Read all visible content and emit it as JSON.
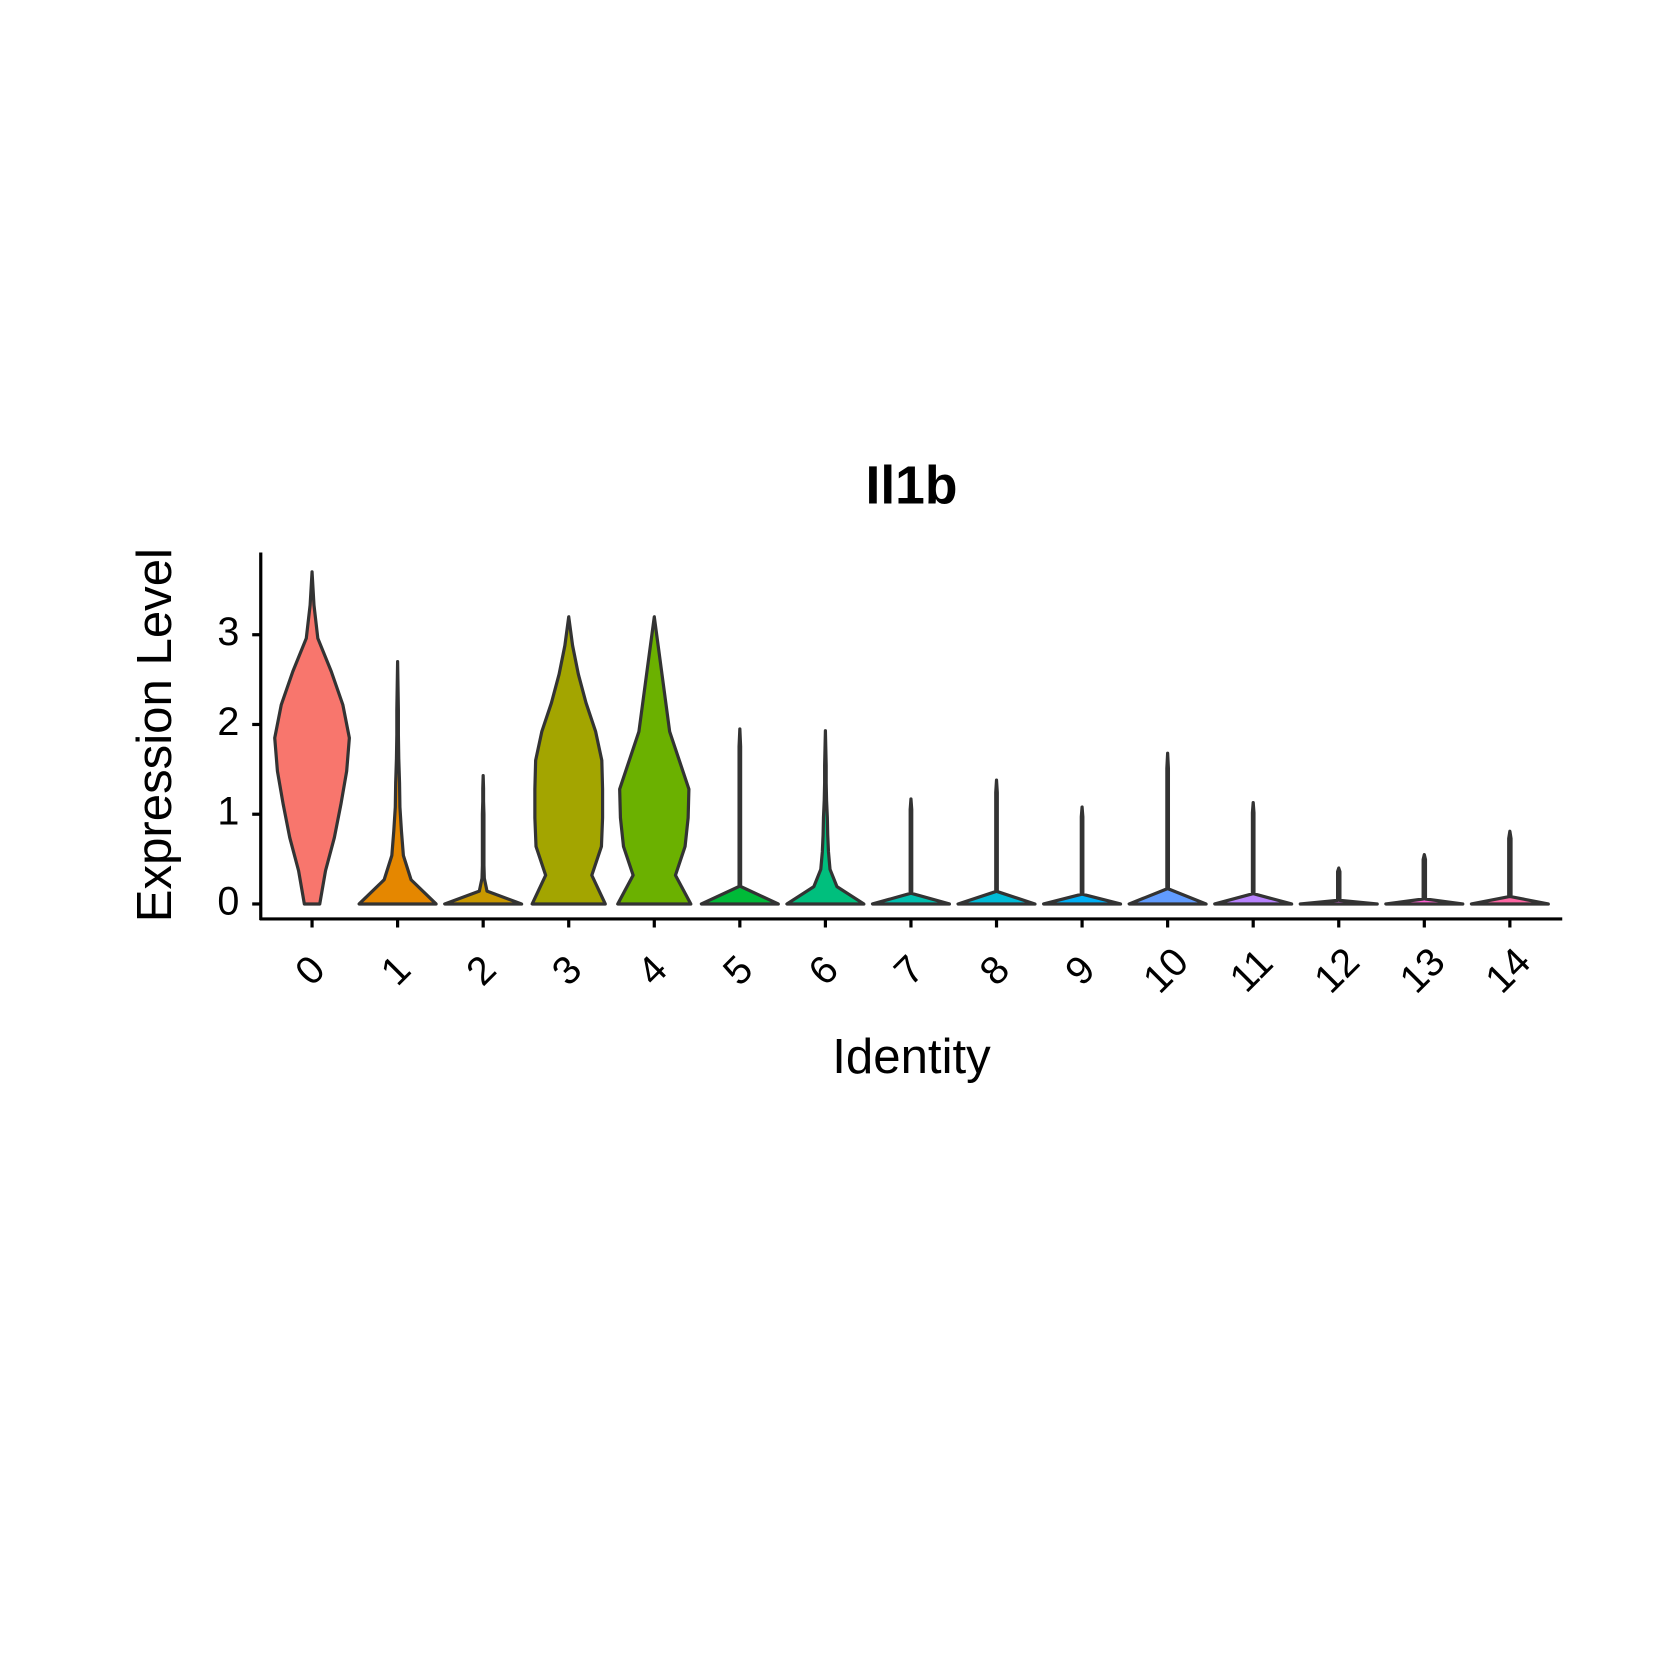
{
  "chart_data": {
    "type": "violin",
    "title": "Il1b",
    "x_label": "Identity",
    "y_label": "Expression Level",
    "categories": [
      "0",
      "1",
      "2",
      "3",
      "4",
      "5",
      "6",
      "7",
      "8",
      "9",
      "10",
      "11",
      "12",
      "13",
      "14"
    ],
    "colors": [
      "#F8766D",
      "#E58700",
      "#C99800",
      "#A3A500",
      "#6BB100",
      "#00BA38",
      "#00BF7D",
      "#00C0AF",
      "#00BCD8",
      "#00B0F6",
      "#619CFF",
      "#B983FF",
      "#E76BF3",
      "#FD61D1",
      "#FF67A4"
    ],
    "max": [
      3.7,
      2.7,
      1.43,
      3.2,
      3.2,
      1.95,
      1.93,
      1.17,
      1.38,
      1.08,
      1.68,
      1.13,
      0.4,
      0.55,
      0.81
    ],
    "profiles": [
      [
        0.2,
        0.35,
        0.58,
        0.75,
        0.9,
        0.97,
        0.8,
        0.5,
        0.15,
        0.05,
        0
      ],
      [
        1.0,
        0.35,
        0.15,
        0.1,
        0.06,
        0.05,
        0.03,
        0.02,
        0.02,
        0.01,
        0
      ],
      [
        1.0,
        0.1,
        0.03,
        0.02,
        0.02,
        0.02,
        0.02,
        0.02,
        0.01,
        0.01,
        0
      ],
      [
        0.95,
        0.6,
        0.85,
        0.88,
        0.88,
        0.86,
        0.7,
        0.45,
        0.25,
        0.1,
        0
      ],
      [
        0.95,
        0.55,
        0.8,
        0.88,
        0.9,
        0.65,
        0.4,
        0.3,
        0.2,
        0.1,
        0
      ],
      [
        1.0,
        0.02,
        0.02,
        0.02,
        0.02,
        0.02,
        0.02,
        0.02,
        0.02,
        0.02,
        0
      ],
      [
        1.0,
        0.3,
        0.12,
        0.08,
        0.06,
        0.05,
        0.03,
        0.02,
        0.02,
        0.01,
        0
      ],
      [
        1.0,
        0.02,
        0.02,
        0.02,
        0.02,
        0.02,
        0.02,
        0.02,
        0.02,
        0.02,
        0
      ],
      [
        1.0,
        0.02,
        0.02,
        0.02,
        0.02,
        0.02,
        0.02,
        0.02,
        0.02,
        0.02,
        0
      ],
      [
        1.0,
        0.02,
        0.02,
        0.02,
        0.02,
        0.02,
        0.02,
        0.02,
        0.02,
        0.02,
        0
      ],
      [
        1.0,
        0.02,
        0.02,
        0.02,
        0.02,
        0.02,
        0.02,
        0.02,
        0.02,
        0.02,
        0
      ],
      [
        1.0,
        0.02,
        0.02,
        0.02,
        0.02,
        0.02,
        0.02,
        0.02,
        0.02,
        0.02,
        0
      ],
      [
        1.0,
        0.03,
        0.03,
        0.03,
        0.03,
        0.03,
        0.03,
        0.03,
        0.03,
        0.03,
        0
      ],
      [
        1.0,
        0.03,
        0.03,
        0.03,
        0.03,
        0.03,
        0.03,
        0.03,
        0.03,
        0.03,
        0
      ],
      [
        1.0,
        0.03,
        0.03,
        0.03,
        0.03,
        0.03,
        0.03,
        0.03,
        0.03,
        0.03,
        0
      ]
    ],
    "ylim": [
      -0.167,
      3.917
    ],
    "yticks": [
      0,
      1,
      2,
      3
    ]
  }
}
